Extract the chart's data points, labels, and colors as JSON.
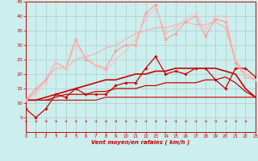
{
  "bg_color": "#cceeed",
  "grid_color": "#aacccc",
  "xlabel": "Vent moyen/en rafales ( km/h )",
  "x_ticks": [
    0,
    1,
    2,
    3,
    4,
    5,
    6,
    7,
    8,
    9,
    10,
    11,
    12,
    13,
    14,
    15,
    16,
    17,
    18,
    19,
    20,
    21,
    22,
    23
  ],
  "ylim": [
    0,
    45
  ],
  "yticks": [
    5,
    10,
    15,
    20,
    25,
    30,
    35,
    40,
    45
  ],
  "xlim": [
    0,
    23
  ],
  "series": [
    {
      "x": [
        0,
        1,
        2,
        3,
        4,
        5,
        6,
        7,
        8,
        9,
        10,
        11,
        12,
        13,
        14,
        15,
        16,
        17,
        18,
        19,
        20,
        21,
        22,
        23
      ],
      "y": [
        8,
        5,
        8,
        13,
        12,
        15,
        13,
        13,
        13,
        16,
        17,
        17,
        22,
        26,
        20,
        21,
        20,
        22,
        22,
        18,
        15,
        22,
        22,
        19
      ],
      "color": "#cc0000",
      "lw": 0.9,
      "marker": "D",
      "ms": 1.8
    },
    {
      "x": [
        0,
        1,
        2,
        3,
        4,
        5,
        6,
        7,
        8,
        9,
        10,
        11,
        12,
        13,
        14,
        15,
        16,
        17,
        18,
        19,
        20,
        21,
        22,
        23
      ],
      "y": [
        11,
        11,
        11,
        11,
        11,
        11,
        11,
        11,
        12,
        12,
        12,
        12,
        12,
        12,
        12,
        12,
        12,
        12,
        12,
        12,
        12,
        12,
        12,
        12
      ],
      "color": "#cc0000",
      "lw": 0.8,
      "marker": null,
      "ms": 0
    },
    {
      "x": [
        0,
        1,
        2,
        3,
        4,
        5,
        6,
        7,
        8,
        9,
        10,
        11,
        12,
        13,
        14,
        15,
        16,
        17,
        18,
        19,
        20,
        21,
        22,
        23
      ],
      "y": [
        11,
        11,
        11,
        12,
        13,
        13,
        13,
        14,
        14,
        15,
        15,
        15,
        16,
        16,
        17,
        17,
        17,
        17,
        18,
        18,
        19,
        17,
        14,
        12
      ],
      "color": "#cc0000",
      "lw": 0.9,
      "marker": null,
      "ms": 0
    },
    {
      "x": [
        0,
        1,
        2,
        3,
        4,
        5,
        6,
        7,
        8,
        9,
        10,
        11,
        12,
        13,
        14,
        15,
        16,
        17,
        18,
        19,
        20,
        21,
        22,
        23
      ],
      "y": [
        11,
        11,
        12,
        13,
        14,
        15,
        16,
        17,
        18,
        18,
        19,
        20,
        20,
        21,
        21,
        22,
        22,
        22,
        22,
        22,
        21,
        20,
        15,
        12
      ],
      "color": "#cc0000",
      "lw": 1.2,
      "marker": null,
      "ms": 0
    },
    {
      "x": [
        0,
        1,
        2,
        3,
        4,
        5,
        6,
        7,
        8,
        9,
        10,
        11,
        12,
        13,
        14,
        15,
        16,
        17,
        18,
        19,
        20,
        21,
        22,
        23
      ],
      "y": [
        11,
        15,
        18,
        24,
        22,
        32,
        25,
        23,
        22,
        28,
        30,
        30,
        41,
        44,
        32,
        34,
        38,
        40,
        33,
        39,
        38,
        24,
        19,
        18
      ],
      "color": "#ff9999",
      "lw": 0.8,
      "marker": "D",
      "ms": 1.8
    },
    {
      "x": [
        0,
        1,
        2,
        3,
        4,
        5,
        6,
        7,
        8,
        9,
        10,
        11,
        12,
        13,
        14,
        15,
        16,
        17,
        18,
        19,
        20,
        21,
        22,
        23
      ],
      "y": [
        11,
        14,
        18,
        22,
        22,
        25,
        26,
        27,
        29,
        30,
        32,
        34,
        35,
        36,
        36,
        37,
        38,
        37,
        37,
        38,
        36,
        25,
        20,
        18
      ],
      "color": "#ffaaaa",
      "lw": 0.8,
      "marker": null,
      "ms": 0
    },
    {
      "x": [
        0,
        1,
        2,
        3,
        4,
        5,
        6,
        7,
        8,
        9,
        10,
        11,
        12,
        13,
        14,
        15,
        16,
        17,
        18,
        19,
        20,
        21,
        22,
        23
      ],
      "y": [
        11,
        13,
        17,
        24,
        22,
        30,
        26,
        23,
        21,
        25,
        28,
        32,
        39,
        43,
        34,
        36,
        39,
        41,
        35,
        40,
        40,
        25,
        19,
        18
      ],
      "color": "#ffbbbb",
      "lw": 0.7,
      "marker": "D",
      "ms": 1.5
    }
  ],
  "arrow_color": "#cc2222",
  "spine_color": "#cc0000"
}
